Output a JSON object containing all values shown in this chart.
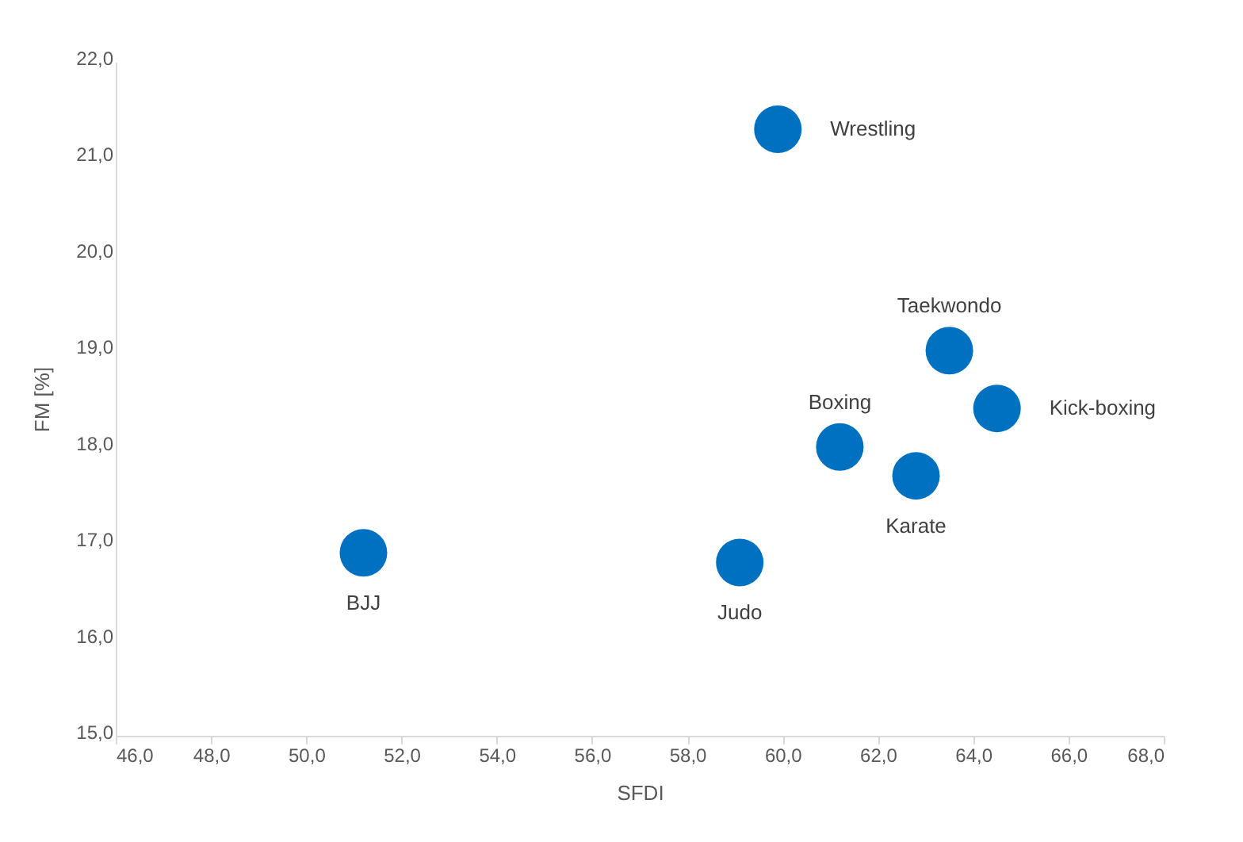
{
  "chart_data": {
    "type": "scatter",
    "xlabel": "SFDI",
    "ylabel": "FM [%]",
    "x": [
      59.9,
      63.5,
      64.5,
      61.2,
      62.8,
      51.2,
      59.1
    ],
    "series": [
      {
        "color": "#0070c0",
        "values": [
          21.3,
          19.0,
          18.4,
          18.0,
          17.7,
          16.9,
          16.8
        ]
      }
    ],
    "marker": "circle",
    "grid": false,
    "legend": false,
    "xlim": [
      46,
      68
    ],
    "ylim": [
      15,
      22
    ],
    "xticks": [
      {
        "value": 46,
        "label": "46,0"
      },
      {
        "value": 48,
        "label": "48,0"
      },
      {
        "value": 50,
        "label": "50,0"
      },
      {
        "value": 52,
        "label": "52,0"
      },
      {
        "value": 54,
        "label": "54,0"
      },
      {
        "value": 56,
        "label": "56,0"
      },
      {
        "value": 58,
        "label": "58,0"
      },
      {
        "value": 60,
        "label": "60,0"
      },
      {
        "value": 62,
        "label": "62,0"
      },
      {
        "value": 64,
        "label": "64,0"
      },
      {
        "value": 66,
        "label": "66,0"
      },
      {
        "value": 68,
        "label": "68,0"
      }
    ],
    "yticks": [
      {
        "value": 15,
        "label": "15,0"
      },
      {
        "value": 16,
        "label": "16,0"
      },
      {
        "value": 17,
        "label": "17,0"
      },
      {
        "value": 18,
        "label": "18,0"
      },
      {
        "value": 19,
        "label": "19,0"
      },
      {
        "value": 20,
        "label": "20,0"
      },
      {
        "value": 21,
        "label": "21,0"
      },
      {
        "value": 22,
        "label": "22,0"
      }
    ],
    "annotations": [
      {
        "text": "Wrestling",
        "x": 59.9,
        "y": 21.3
      },
      {
        "text": "Taekwondo",
        "x": 63.5,
        "y": 19.0
      },
      {
        "text": "Kick-boxing",
        "x": 64.5,
        "y": 18.4
      },
      {
        "text": "Boxing",
        "x": 61.2,
        "y": 18.0
      },
      {
        "text": "Karate",
        "x": 62.8,
        "y": 17.7
      },
      {
        "text": "BJJ",
        "x": 51.2,
        "y": 16.9
      },
      {
        "text": "Judo",
        "x": 59.1,
        "y": 16.8
      }
    ]
  }
}
